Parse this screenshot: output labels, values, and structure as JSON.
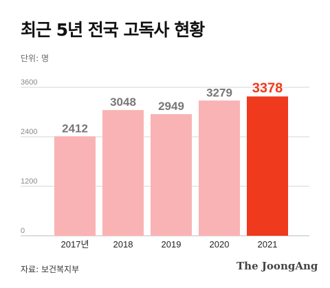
{
  "title": "최근 5년 전국 고독사 현황",
  "unit_label": "단위: 명",
  "source": "자료: 보건복지부",
  "brand": "The JoongAng",
  "colors": {
    "bar_default": "#f9b3b4",
    "bar_highlight": "#ef3a1d",
    "label_default": "#777777",
    "label_highlight": "#ef3a1d",
    "grid": "#d6d6d6",
    "axis_text": "#888888"
  },
  "chart_data": {
    "type": "bar",
    "categories": [
      "2017년",
      "2018",
      "2019",
      "2020",
      "2021"
    ],
    "values": [
      2412,
      3048,
      2949,
      3279,
      3378
    ],
    "data_labels": [
      "2412",
      "3048",
      "2949",
      "3279",
      "3378"
    ],
    "highlight_index": 4,
    "yticks": [
      0,
      1200,
      2400,
      3600
    ],
    "ylim": [
      0,
      3600
    ],
    "grid": true,
    "legend": false
  }
}
